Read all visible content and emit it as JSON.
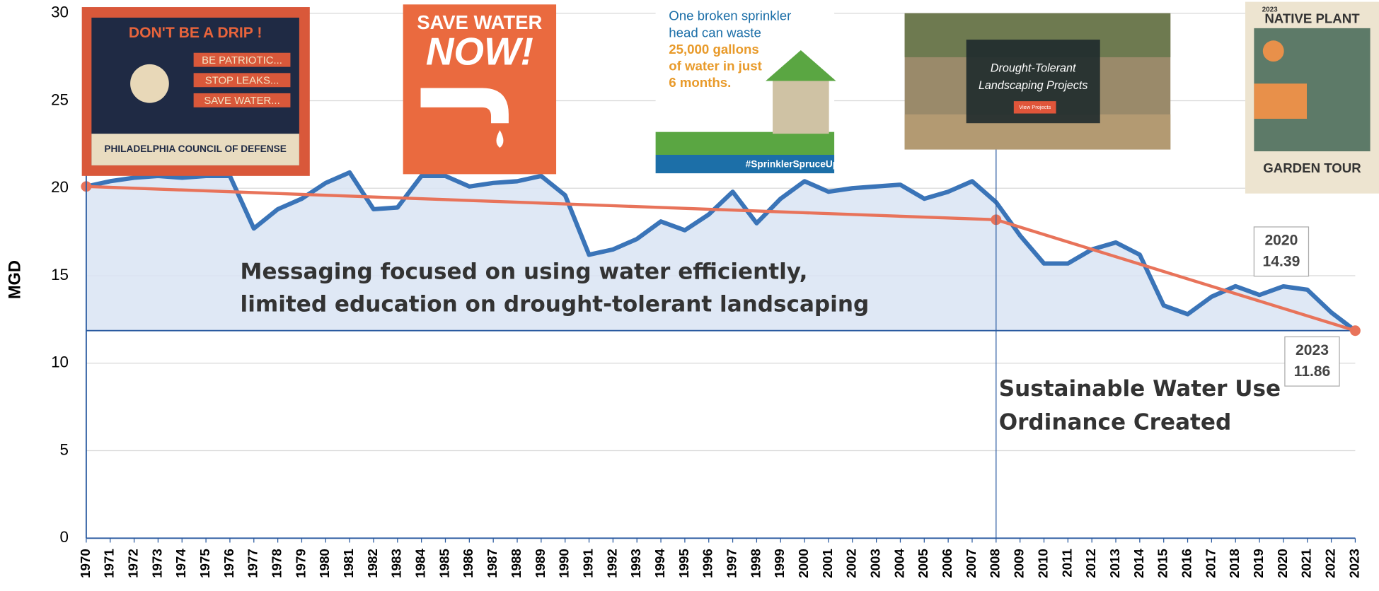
{
  "chart_data": {
    "type": "line",
    "y_label": "MGD",
    "x": [
      1970,
      1971,
      1972,
      1973,
      1974,
      1975,
      1976,
      1977,
      1978,
      1979,
      1980,
      1981,
      1982,
      1983,
      1984,
      1985,
      1986,
      1987,
      1988,
      1989,
      1990,
      1991,
      1992,
      1993,
      1994,
      1995,
      1996,
      1997,
      1998,
      1999,
      2000,
      2001,
      2002,
      2003,
      2004,
      2005,
      2006,
      2007,
      2008,
      2009,
      2010,
      2011,
      2012,
      2013,
      2014,
      2015,
      2016,
      2017,
      2018,
      2019,
      2020,
      2021,
      2022,
      2023
    ],
    "series": [
      {
        "color": "#3a74b8",
        "values": [
          20.1,
          20.4,
          20.6,
          20.7,
          20.6,
          20.7,
          20.7,
          17.7,
          18.8,
          19.4,
          20.3,
          20.9,
          18.8,
          18.9,
          20.7,
          20.7,
          20.1,
          20.3,
          20.4,
          20.7,
          19.6,
          16.2,
          16.5,
          17.1,
          18.1,
          17.6,
          18.5,
          19.8,
          18.0,
          19.4,
          20.4,
          19.8,
          20.0,
          20.1,
          20.2,
          19.4,
          19.8,
          20.4,
          19.2,
          17.3,
          15.7,
          15.7,
          16.5,
          16.9,
          16.2,
          13.3,
          12.8,
          13.8,
          14.4,
          13.9,
          14.39,
          14.2,
          12.9,
          11.86
        ]
      }
    ],
    "trend": {
      "color": "#e8735a",
      "x": [
        1970,
        2008,
        2023
      ],
      "values": [
        20.1,
        18.2,
        11.86
      ]
    },
    "reference_line": 11.86,
    "vline": 2008,
    "callouts": [
      {
        "x": 2020,
        "value": 14.39
      },
      {
        "x": 2023,
        "value": 11.86
      }
    ],
    "annotations": [
      {
        "lines": [
          "Messaging focused on using water efficiently,",
          "limited education on drought-tolerant landscaping"
        ]
      },
      {
        "lines": [
          "Sustainable Water Use",
          "Ordinance Created"
        ]
      }
    ],
    "xlim": [
      1970,
      2023
    ],
    "ylim": [
      0,
      30
    ],
    "yticks": [
      0,
      5,
      10,
      15,
      20,
      25,
      30
    ],
    "grid": true,
    "images": [
      {
        "texts": [
          "DON'T BE A DRIP !",
          "BE PATRIOTIC...",
          "STOP LEAKS...",
          "SAVE WATER...",
          "PHILADELPHIA COUNCIL OF DEFENSE"
        ]
      },
      {
        "texts": [
          "SAVE WATER",
          "NOW!"
        ]
      },
      {
        "texts": [
          "One broken sprinkler",
          "head can waste",
          "25,000 gallons",
          "of water in just",
          "6 months.",
          "#SprinklerSpruceUp"
        ]
      },
      {
        "texts": [
          "Drought-Tolerant",
          "Landscaping Projects",
          "View Projects"
        ]
      },
      {
        "texts": [
          "2023",
          "NATIVE PLANT",
          "GARDEN TOUR"
        ]
      }
    ]
  }
}
